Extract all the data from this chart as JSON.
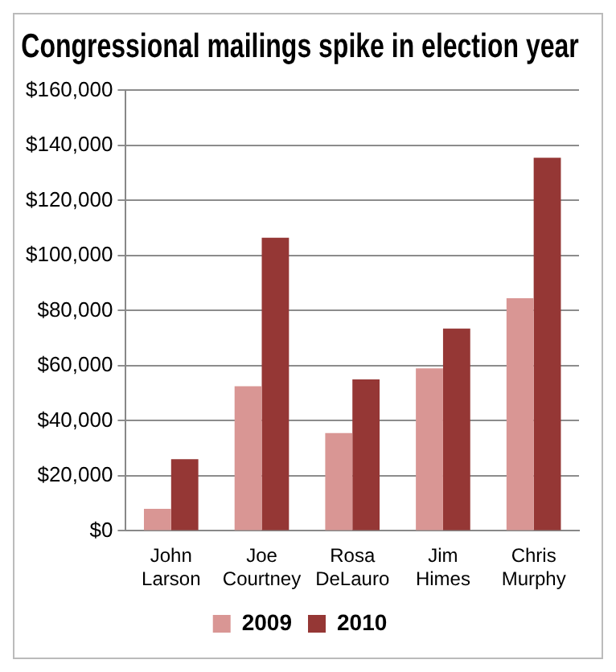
{
  "chart_data": {
    "type": "bar",
    "title": "Congressional mailings spike in election year",
    "categories": [
      "John Larson",
      "Joe Courtney",
      "Rosa DeLauro",
      "Jim Himes",
      "Chris Murphy"
    ],
    "series": [
      {
        "name": "2009",
        "color": "#d99694",
        "values": [
          8000,
          52500,
          35500,
          59000,
          84500
        ]
      },
      {
        "name": "2010",
        "color": "#953735",
        "values": [
          26000,
          106500,
          55000,
          73500,
          135500
        ]
      }
    ],
    "ylim": [
      0,
      160000
    ],
    "yticks": [
      {
        "value": 0,
        "label": "$0"
      },
      {
        "value": 20000,
        "label": "$20,000"
      },
      {
        "value": 40000,
        "label": "$40,000"
      },
      {
        "value": 60000,
        "label": "$60,000"
      },
      {
        "value": 80000,
        "label": "$80,000"
      },
      {
        "value": 100000,
        "label": "$100,000"
      },
      {
        "value": 120000,
        "label": "$120,000"
      },
      {
        "value": 140000,
        "label": "$140,000"
      },
      {
        "value": 160000,
        "label": "$160,000"
      }
    ],
    "grid": "y",
    "legend": "bottom"
  }
}
